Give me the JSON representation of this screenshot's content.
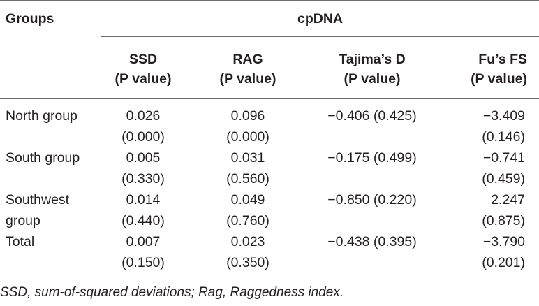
{
  "header": {
    "groups_label": "Groups",
    "span_label": "cpDNA",
    "columns": [
      {
        "line1": "SSD",
        "line2": "(P value)"
      },
      {
        "line1": "RAG",
        "line2": "(P value)"
      },
      {
        "line1": "Tajima’s D",
        "line2": "(P value)"
      },
      {
        "line1": "Fu’s FS",
        "line2": "(P value)"
      }
    ]
  },
  "rows": [
    {
      "group": [
        "North group"
      ],
      "ssd": [
        "0.026",
        "(0.000)"
      ],
      "rag": [
        "0.096",
        "(0.000)"
      ],
      "tajima": "−0.406 (0.425)",
      "fu": [
        "−3.409",
        "(0.146)"
      ]
    },
    {
      "group": [
        "South group"
      ],
      "ssd": [
        "0.005",
        "(0.330)"
      ],
      "rag": [
        "0.031",
        "(0.560)"
      ],
      "tajima": "−0.175 (0.499)",
      "fu": [
        "−0.741",
        "(0.459)"
      ]
    },
    {
      "group": [
        "Southwest",
        "group"
      ],
      "ssd": [
        "0.014",
        "(0.440)"
      ],
      "rag": [
        "0.049",
        "(0.760)"
      ],
      "tajima": "−0.850 (0.220)",
      "fu": [
        "2.247",
        "(0.875)"
      ]
    },
    {
      "group": [
        "Total"
      ],
      "ssd": [
        "0.007",
        "(0.150)"
      ],
      "rag": [
        "0.023",
        "(0.350)"
      ],
      "tajima": "−0.438 (0.395)",
      "fu": [
        "−3.790",
        "(0.201)"
      ]
    }
  ],
  "footnote": "SSD, sum-of-squared deviations; Rag, Raggedness index."
}
